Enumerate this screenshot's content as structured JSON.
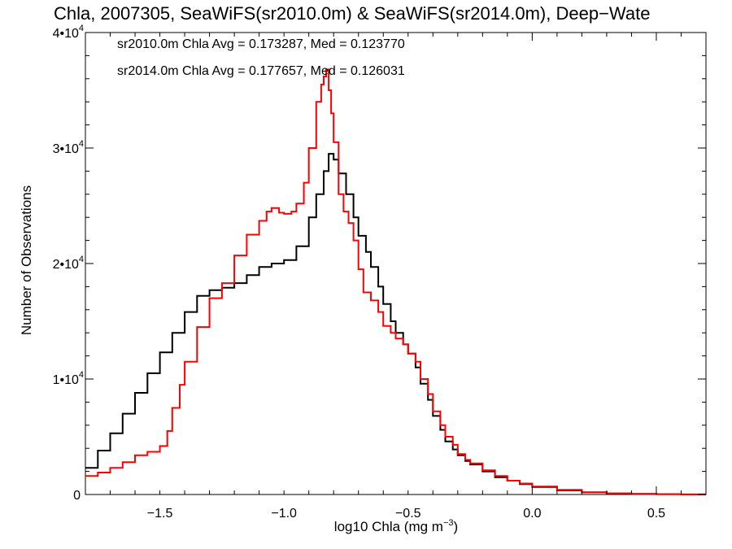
{
  "chart_data": {
    "type": "line",
    "title": "Chla, 2007305, SeaWiFS(sr2010.0m) & SeaWiFS(sr2014.0m), Deep−Wate",
    "xlabel": "log10 Chla (mg m",
    "xlabel_sup": "−3",
    "xlabel_end": ")",
    "ylabel": "Number of Observations",
    "xlim": [
      -1.8,
      0.7
    ],
    "ylim": [
      0,
      40000
    ],
    "x_ticks": [
      {
        "value": -1.5,
        "label": "−1.5"
      },
      {
        "value": -1.0,
        "label": "−1.0"
      },
      {
        "value": -0.5,
        "label": "−0.5"
      },
      {
        "value": 0.0,
        "label": "0.0"
      },
      {
        "value": 0.5,
        "label": "0.5"
      }
    ],
    "y_ticks": [
      {
        "value": 0,
        "label": "0",
        "exp": ""
      },
      {
        "value": 10000,
        "label": "1•10",
        "exp": "4"
      },
      {
        "value": 20000,
        "label": "2•10",
        "exp": "4"
      },
      {
        "value": 30000,
        "label": "3•10",
        "exp": "4"
      },
      {
        "value": 40000,
        "label": "4•10",
        "exp": "4"
      }
    ],
    "legend_entries": [
      {
        "text": "sr2010.0m Chla Avg = 0.173287, Med = 0.123770",
        "color": "#000000"
      },
      {
        "text": "sr2014.0m Chla Avg = 0.177657, Med = 0.126031",
        "color": "#ff0000"
      }
    ],
    "series": [
      {
        "color": "#000000",
        "x": [
          -1.8,
          -1.75,
          -1.7,
          -1.65,
          -1.6,
          -1.55,
          -1.5,
          -1.45,
          -1.4,
          -1.35,
          -1.3,
          -1.25,
          -1.2,
          -1.15,
          -1.1,
          -1.05,
          -1.0,
          -0.95,
          -0.9,
          -0.87,
          -0.84,
          -0.82,
          -0.8,
          -0.78,
          -0.75,
          -0.72,
          -0.7,
          -0.67,
          -0.65,
          -0.62,
          -0.6,
          -0.57,
          -0.55,
          -0.52,
          -0.5,
          -0.47,
          -0.45,
          -0.42,
          -0.4,
          -0.37,
          -0.35,
          -0.32,
          -0.3,
          -0.27,
          -0.25,
          -0.2,
          -0.15,
          -0.1,
          -0.05,
          0.0,
          0.1,
          0.2,
          0.3,
          0.4,
          0.5,
          0.6,
          0.7
        ],
        "values": [
          2300,
          3800,
          5300,
          7000,
          8800,
          10500,
          12300,
          14000,
          15800,
          17200,
          17700,
          17900,
          18300,
          19000,
          19700,
          20000,
          20300,
          21500,
          24000,
          26000,
          28000,
          29500,
          29000,
          27800,
          26000,
          24000,
          22400,
          21000,
          19700,
          18000,
          16500,
          15000,
          14000,
          13000,
          12200,
          11000,
          9600,
          8200,
          6800,
          5600,
          4600,
          3900,
          3400,
          2900,
          2600,
          2000,
          1500,
          1200,
          900,
          650,
          350,
          180,
          90,
          50,
          25,
          10,
          5
        ]
      },
      {
        "color": "#ff0000",
        "x": [
          -1.8,
          -1.75,
          -1.7,
          -1.65,
          -1.6,
          -1.55,
          -1.5,
          -1.47,
          -1.45,
          -1.42,
          -1.4,
          -1.35,
          -1.3,
          -1.25,
          -1.2,
          -1.15,
          -1.1,
          -1.07,
          -1.05,
          -1.02,
          -1.0,
          -0.97,
          -0.95,
          -0.92,
          -0.9,
          -0.87,
          -0.85,
          -0.84,
          -0.83,
          -0.82,
          -0.81,
          -0.8,
          -0.78,
          -0.76,
          -0.74,
          -0.72,
          -0.7,
          -0.68,
          -0.65,
          -0.62,
          -0.6,
          -0.57,
          -0.55,
          -0.52,
          -0.5,
          -0.47,
          -0.45,
          -0.42,
          -0.4,
          -0.37,
          -0.35,
          -0.32,
          -0.3,
          -0.27,
          -0.25,
          -0.2,
          -0.15,
          -0.1,
          -0.05,
          0.0,
          0.1,
          0.2,
          0.3,
          0.4,
          0.5,
          0.6,
          0.7
        ],
        "values": [
          1600,
          1900,
          2300,
          2800,
          3400,
          3700,
          4200,
          5500,
          7500,
          9500,
          11500,
          14500,
          17000,
          18300,
          20700,
          22500,
          23700,
          24500,
          24800,
          24400,
          24300,
          24500,
          25200,
          27000,
          30000,
          34000,
          35500,
          36200,
          36800,
          35000,
          33000,
          30500,
          26000,
          24500,
          23500,
          22000,
          19500,
          17500,
          16800,
          15800,
          14600,
          14000,
          13500,
          13000,
          12200,
          11500,
          10000,
          8700,
          7200,
          6000,
          5000,
          4300,
          3500,
          3000,
          2700,
          2100,
          1600,
          1200,
          950,
          700,
          400,
          200,
          100,
          50,
          25,
          10,
          5
        ]
      }
    ],
    "grid": false
  }
}
